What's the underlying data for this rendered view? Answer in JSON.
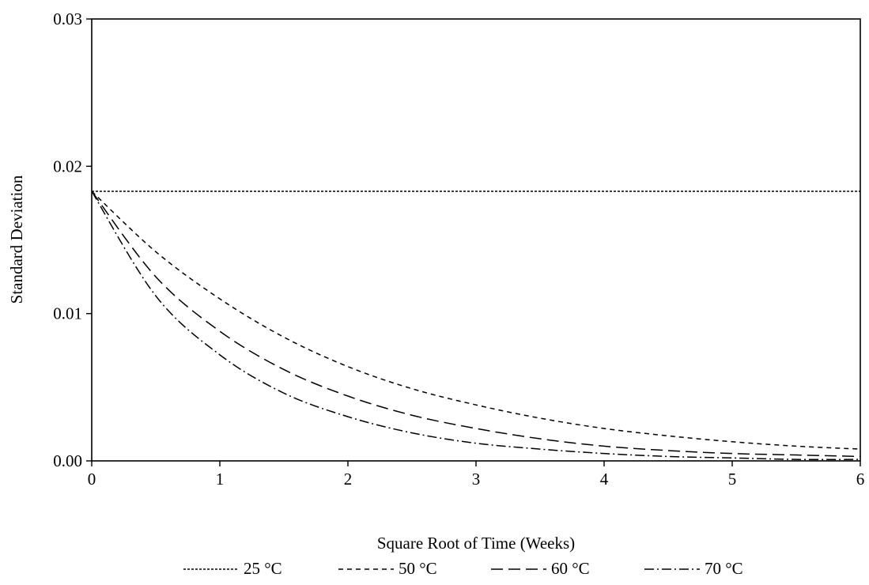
{
  "chart_data": {
    "type": "line",
    "title": "",
    "xlabel": "Square Root of Time (Weeks)",
    "ylabel": "Standard Deviation",
    "xlim": [
      0,
      6
    ],
    "ylim": [
      0,
      0.03
    ],
    "x_ticks": [
      0,
      1,
      2,
      3,
      4,
      5,
      6
    ],
    "x_tick_labels": [
      "0",
      "1",
      "2",
      "3",
      "4",
      "5",
      "6"
    ],
    "y_ticks": [
      0,
      0.01,
      0.02,
      0.03
    ],
    "y_tick_labels": [
      "0.00",
      "0.01",
      "0.02",
      "0.03"
    ],
    "grid": false,
    "legend_position": "bottom",
    "x": [
      0,
      0.5,
      1,
      1.5,
      2,
      2.5,
      3,
      3.5,
      4,
      4.5,
      5,
      5.5,
      6
    ],
    "series": [
      {
        "name": "25 °C",
        "dash": "dotted",
        "color": "#000000",
        "values": [
          0.0183,
          0.0183,
          0.0183,
          0.0183,
          0.0183,
          0.0183,
          0.0183,
          0.0183,
          0.0183,
          0.0183,
          0.0183,
          0.0183,
          0.0183
        ]
      },
      {
        "name": "50 °C",
        "dash": "short-dash",
        "color": "#000000",
        "values": [
          0.0183,
          0.0142,
          0.011,
          0.0084,
          0.0064,
          0.0049,
          0.0038,
          0.0029,
          0.0022,
          0.0017,
          0.0013,
          0.001,
          0.0008
        ]
      },
      {
        "name": "60 °C",
        "dash": "long-dash",
        "color": "#000000",
        "values": [
          0.0183,
          0.0125,
          0.0088,
          0.0062,
          0.0044,
          0.0031,
          0.0022,
          0.0015,
          0.001,
          0.0007,
          0.0005,
          0.0004,
          0.0003
        ]
      },
      {
        "name": "70 °C",
        "dash": "dash-dot",
        "color": "#000000",
        "values": [
          0.0183,
          0.0112,
          0.0072,
          0.0046,
          0.003,
          0.0019,
          0.0012,
          0.0008,
          0.0005,
          0.0003,
          0.0002,
          0.0001,
          0.0001
        ]
      }
    ]
  }
}
